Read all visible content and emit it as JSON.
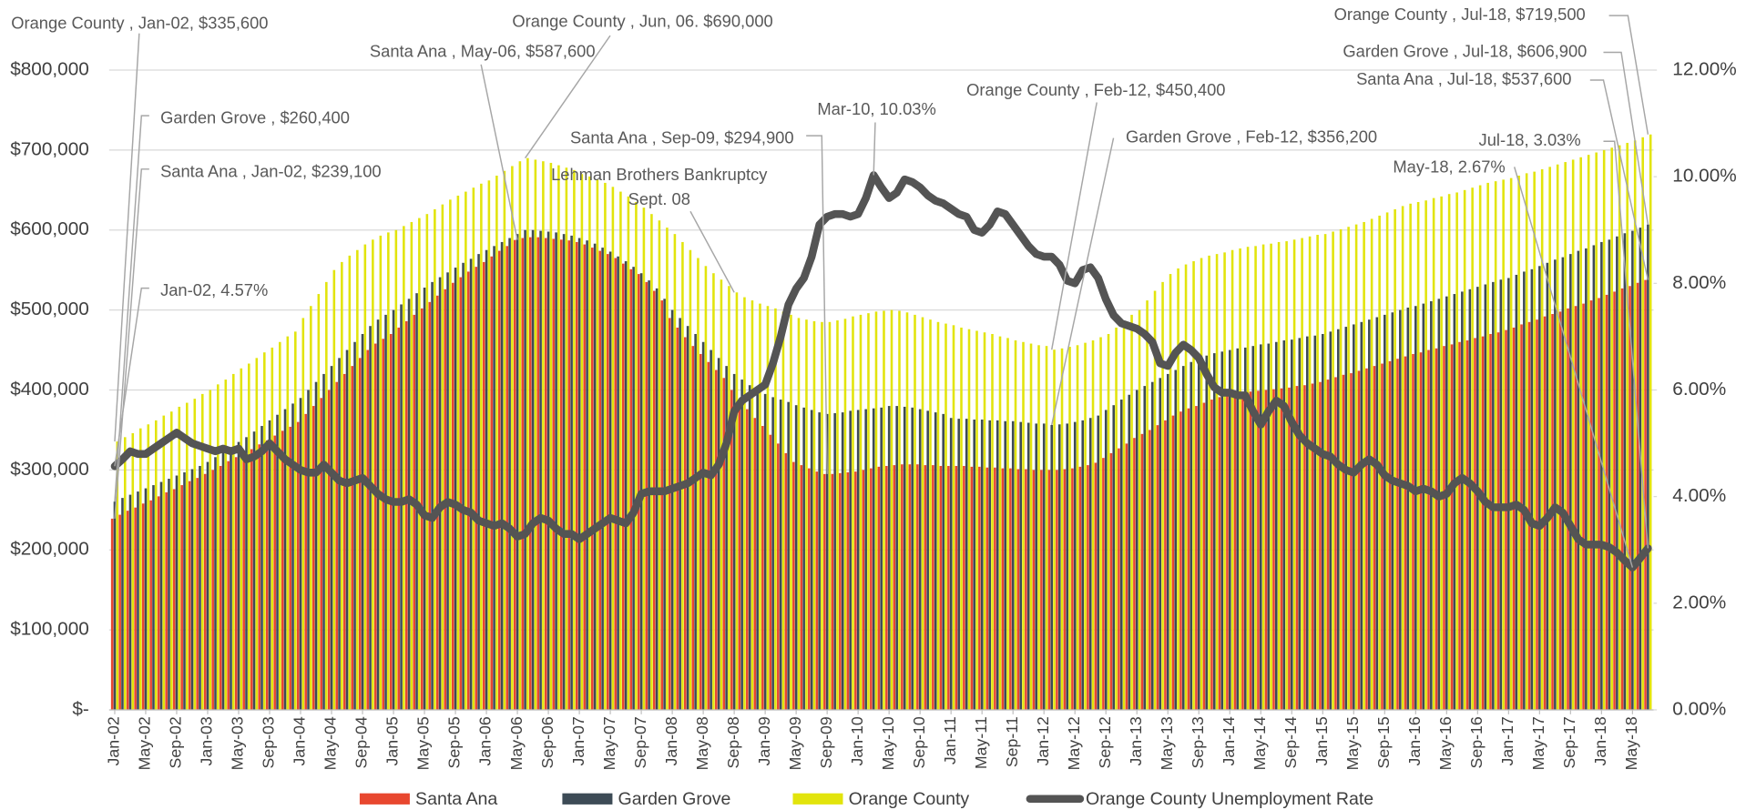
{
  "chart_data": {
    "type": "bar",
    "categories": [
      "Jan-02",
      null,
      null,
      null,
      "May-02",
      null,
      null,
      null,
      "Sep-02",
      null,
      null,
      null,
      "Jan-03",
      null,
      null,
      null,
      "May-03",
      null,
      null,
      null,
      "Sep-03",
      null,
      null,
      null,
      "Jan-04",
      null,
      null,
      null,
      "May-04",
      null,
      null,
      null,
      "Sep-04",
      null,
      null,
      null,
      "Jan-05",
      null,
      null,
      null,
      "May-05",
      null,
      null,
      null,
      "Sep-05",
      null,
      null,
      null,
      "Jan-06",
      null,
      null,
      null,
      "May-06",
      null,
      null,
      null,
      "Sep-06",
      null,
      null,
      null,
      "Jan-07",
      null,
      null,
      null,
      "May-07",
      null,
      null,
      null,
      "Sep-07",
      null,
      null,
      null,
      "Jan-08",
      null,
      null,
      null,
      "May-08",
      null,
      null,
      null,
      "Sep-08",
      null,
      null,
      null,
      "Jan-09",
      null,
      null,
      null,
      "May-09",
      null,
      null,
      null,
      "Sep-09",
      null,
      null,
      null,
      "Jan-10",
      null,
      null,
      null,
      "May-10",
      null,
      null,
      null,
      "Sep-10",
      null,
      null,
      null,
      "Jan-11",
      null,
      null,
      null,
      "May-11",
      null,
      null,
      null,
      "Sep-11",
      null,
      null,
      null,
      "Jan-12",
      null,
      null,
      null,
      "May-12",
      null,
      null,
      null,
      "Sep-12",
      null,
      null,
      null,
      "Jan-13",
      null,
      null,
      null,
      "May-13",
      null,
      null,
      null,
      "Sep-13",
      null,
      null,
      null,
      "Jan-14",
      null,
      null,
      null,
      "May-14",
      null,
      null,
      null,
      "Sep-14",
      null,
      null,
      null,
      "Jan-15",
      null,
      null,
      null,
      "May-15",
      null,
      null,
      null,
      "Sep-15",
      null,
      null,
      null,
      "Jan-16",
      null,
      null,
      null,
      "May-16",
      null,
      null,
      null,
      "Sep-16",
      null,
      null,
      null,
      "Jan-17",
      null,
      null,
      null,
      "May-17",
      null,
      null,
      null,
      "Sep-17",
      null,
      null,
      null,
      "Jan-18",
      null,
      null,
      null,
      "May-18",
      null,
      null
    ],
    "series": [
      {
        "name": "Santa Ana",
        "color": "#e8472f",
        "values": [
          239100,
          244000,
          249000,
          253000,
          258000,
          262000,
          267000,
          272000,
          276000,
          281000,
          286000,
          290000,
          295000,
          300000,
          305000,
          311000,
          316000,
          321000,
          326000,
          332000,
          337000,
          343000,
          349000,
          354000,
          360000,
          370000,
          380000,
          390000,
          400000,
          410000,
          420000,
          430000,
          440000,
          450000,
          458000,
          464000,
          470000,
          478000,
          486000,
          494000,
          502000,
          510000,
          518000,
          526000,
          534000,
          541000,
          548000,
          554000,
          560000,
          567000,
          574000,
          580000,
          587600,
          590000,
          591000,
          591000,
          590000,
          589000,
          588000,
          587000,
          585000,
          582000,
          578000,
          574000,
          570000,
          565000,
          558000,
          551000,
          545000,
          535000,
          524000,
          512000,
          490000,
          478000,
          466000,
          455000,
          445000,
          435000,
          425000,
          415000,
          400000,
          388000,
          376000,
          365000,
          355000,
          344000,
          333000,
          321000,
          310000,
          306000,
          302000,
          298000,
          294900,
          295000,
          296000,
          297000,
          298000,
          300000,
          302000,
          304000,
          305000,
          306000,
          307000,
          307000,
          307000,
          306000,
          306000,
          305000,
          305000,
          305000,
          305000,
          304000,
          304000,
          303000,
          303000,
          302000,
          302000,
          301000,
          301000,
          300000,
          300000,
          300000,
          300000,
          301000,
          302000,
          304000,
          306000,
          309000,
          315000,
          321000,
          327000,
          333000,
          340000,
          345000,
          350000,
          356000,
          362000,
          368000,
          373000,
          377000,
          380000,
          384000,
          388000,
          391000,
          395000,
          396000,
          397000,
          398000,
          399000,
          400000,
          401000,
          402000,
          403000,
          405000,
          406000,
          408000,
          410000,
          413000,
          416000,
          419000,
          421000,
          424000,
          427000,
          430000,
          433000,
          436000,
          439000,
          442000,
          445000,
          447000,
          450000,
          452000,
          455000,
          457000,
          460000,
          462000,
          465000,
          467000,
          470000,
          472000,
          475000,
          478000,
          482000,
          485000,
          488000,
          492000,
          495000,
          498000,
          502000,
          505000,
          508000,
          512000,
          515000,
          519000,
          523000,
          527000,
          530000,
          534000,
          537600
        ]
      },
      {
        "name": "Garden Grove",
        "color": "#3d4b56",
        "values": [
          260400,
          265000,
          269000,
          273000,
          277000,
          281000,
          285000,
          289000,
          293000,
          297000,
          301000,
          305000,
          310000,
          316000,
          322000,
          328000,
          335000,
          341000,
          348000,
          355000,
          362000,
          369000,
          376000,
          383000,
          390000,
          400000,
          410000,
          420000,
          430000,
          440000,
          450000,
          460000,
          470000,
          480000,
          488000,
          494000,
          500000,
          507000,
          514000,
          521000,
          528000,
          535000,
          541000,
          547000,
          553000,
          559000,
          564000,
          570000,
          575000,
          580000,
          585000,
          590000,
          595000,
          600000,
          600000,
          599000,
          598000,
          597000,
          595000,
          593000,
          590000,
          587000,
          583000,
          578000,
          573000,
          567000,
          561000,
          554000,
          546000,
          537000,
          527000,
          514000,
          500000,
          490000,
          480000,
          470000,
          460000,
          450000,
          440000,
          430000,
          420000,
          413000,
          406000,
          400000,
          395000,
          391000,
          388000,
          385000,
          381000,
          378000,
          375000,
          372000,
          370000,
          371000,
          372000,
          374000,
          375000,
          376000,
          377000,
          378000,
          380000,
          380000,
          379000,
          378000,
          376000,
          374000,
          372000,
          370000,
          365000,
          364000,
          364000,
          363000,
          363000,
          362000,
          362000,
          361000,
          361000,
          360000,
          359000,
          358000,
          358000,
          356200,
          357000,
          358000,
          360000,
          362000,
          365000,
          368000,
          375000,
          381000,
          388000,
          394000,
          400000,
          405000,
          410000,
          415000,
          420000,
          425000,
          430000,
          435000,
          440000,
          443000,
          446000,
          448000,
          450000,
          452000,
          453000,
          455000,
          457000,
          458000,
          460000,
          462000,
          463000,
          465000,
          467000,
          468000,
          470000,
          473000,
          476000,
          479000,
          482000,
          485000,
          488000,
          491000,
          494000,
          497000,
          500000,
          503000,
          505000,
          508000,
          511000,
          514000,
          517000,
          520000,
          523000,
          526000,
          529000,
          532000,
          535000,
          538000,
          540000,
          544000,
          548000,
          551000,
          555000,
          559000,
          563000,
          566000,
          570000,
          574000,
          577000,
          581000,
          585000,
          588000,
          592000,
          596000,
          599000,
          603000,
          606900
        ]
      },
      {
        "name": "Orange County",
        "color": "#e2e40c",
        "values": [
          335600,
          341000,
          346000,
          352000,
          357000,
          362000,
          368000,
          373000,
          379000,
          384000,
          389000,
          395000,
          400000,
          407000,
          413000,
          420000,
          427000,
          433000,
          440000,
          447000,
          453000,
          460000,
          467000,
          473000,
          490000,
          505000,
          520000,
          535000,
          550000,
          560000,
          568000,
          575000,
          582000,
          588000,
          593000,
          597000,
          600000,
          605000,
          610000,
          615000,
          620000,
          626000,
          632000,
          638000,
          643000,
          648000,
          653000,
          658000,
          662000,
          668000,
          674000,
          680000,
          686000,
          690000,
          688000,
          686000,
          684000,
          681000,
          678000,
          675000,
          670000,
          667000,
          663000,
          659000,
          654000,
          648000,
          642000,
          635000,
          628000,
          620000,
          612000,
          603000,
          595000,
          585000,
          575000,
          565000,
          555000,
          546000,
          538000,
          530000,
          522000,
          516000,
          512000,
          508000,
          505000,
          502000,
          498000,
          494000,
          490000,
          488000,
          486000,
          485000,
          485000,
          487000,
          489000,
          492000,
          494000,
          496000,
          498000,
          499000,
          500000,
          499000,
          497000,
          494000,
          491000,
          488000,
          485000,
          483000,
          481000,
          478000,
          476000,
          474000,
          472000,
          470000,
          467000,
          465000,
          462000,
          460000,
          458000,
          456000,
          455000,
          450400,
          452000,
          454000,
          456000,
          459000,
          462000,
          466000,
          470000,
          478000,
          486000,
          494000,
          500000,
          512000,
          524000,
          535000,
          545000,
          552000,
          557000,
          561000,
          565000,
          568000,
          570000,
          572000,
          575000,
          577000,
          579000,
          580000,
          582000,
          583000,
          585000,
          586000,
          588000,
          590000,
          592000,
          594000,
          595000,
          598000,
          601000,
          604000,
          607000,
          610000,
          614000,
          618000,
          622000,
          626000,
          630000,
          633000,
          635000,
          637000,
          640000,
          642000,
          645000,
          647000,
          650000,
          653000,
          656000,
          659000,
          661000,
          663000,
          665000,
          668000,
          671000,
          673000,
          676000,
          679000,
          682000,
          685000,
          688000,
          691000,
          694000,
          697000,
          700000,
          703000,
          706000,
          709000,
          712000,
          716000,
          719500
        ]
      },
      {
        "name": "Orange County Unemployment Rate",
        "color": "#545454",
        "type": "line",
        "axis": "y2",
        "values": [
          4.57,
          4.7,
          4.85,
          4.8,
          4.8,
          4.9,
          5.0,
          5.1,
          5.2,
          5.1,
          5.0,
          4.95,
          4.9,
          4.85,
          4.9,
          4.85,
          4.9,
          4.7,
          4.75,
          4.85,
          5.0,
          4.85,
          4.7,
          4.6,
          4.5,
          4.45,
          4.45,
          4.6,
          4.45,
          4.3,
          4.25,
          4.3,
          4.35,
          4.2,
          4.05,
          3.95,
          3.9,
          3.9,
          3.95,
          3.85,
          3.65,
          3.6,
          3.8,
          3.9,
          3.85,
          3.75,
          3.7,
          3.55,
          3.5,
          3.45,
          3.5,
          3.4,
          3.25,
          3.3,
          3.5,
          3.6,
          3.55,
          3.4,
          3.3,
          3.3,
          3.2,
          3.3,
          3.4,
          3.5,
          3.6,
          3.55,
          3.5,
          3.7,
          4.05,
          4.1,
          4.1,
          4.1,
          4.15,
          4.2,
          4.25,
          4.35,
          4.45,
          4.4,
          4.6,
          5.0,
          5.6,
          5.8,
          5.9,
          6.0,
          6.1,
          6.5,
          7.0,
          7.6,
          7.9,
          8.1,
          8.5,
          9.1,
          9.25,
          9.3,
          9.3,
          9.25,
          9.3,
          9.6,
          10.03,
          9.8,
          9.6,
          9.7,
          9.95,
          9.9,
          9.8,
          9.65,
          9.55,
          9.5,
          9.4,
          9.3,
          9.25,
          9.0,
          8.95,
          9.1,
          9.35,
          9.3,
          9.1,
          8.9,
          8.7,
          8.55,
          8.5,
          8.5,
          8.35,
          8.05,
          8.0,
          8.25,
          8.3,
          8.1,
          7.7,
          7.4,
          7.25,
          7.2,
          7.15,
          7.05,
          6.9,
          6.5,
          6.45,
          6.7,
          6.85,
          6.75,
          6.6,
          6.3,
          6.05,
          5.95,
          5.95,
          5.9,
          5.9,
          5.6,
          5.35,
          5.6,
          5.8,
          5.7,
          5.4,
          5.15,
          5.0,
          4.9,
          4.8,
          4.75,
          4.6,
          4.5,
          4.45,
          4.6,
          4.7,
          4.6,
          4.4,
          4.3,
          4.25,
          4.2,
          4.1,
          4.15,
          4.1,
          4.0,
          4.05,
          4.25,
          4.35,
          4.25,
          4.1,
          3.9,
          3.8,
          3.8,
          3.8,
          3.85,
          3.75,
          3.5,
          3.45,
          3.6,
          3.8,
          3.7,
          3.45,
          3.2,
          3.1,
          3.1,
          3.1,
          3.05,
          2.95,
          2.8,
          2.67,
          2.85,
          3.03
        ]
      }
    ],
    "ylim": [
      0,
      800000
    ],
    "yticks": [
      {
        "value": 0,
        "label": "$-"
      },
      {
        "value": 100000,
        "label": "$100,000"
      },
      {
        "value": 200000,
        "label": "$200,000"
      },
      {
        "value": 300000,
        "label": "$300,000"
      },
      {
        "value": 400000,
        "label": "$400,000"
      },
      {
        "value": 500000,
        "label": "$500,000"
      },
      {
        "value": 600000,
        "label": "$600,000"
      },
      {
        "value": 700000,
        "label": "$700,000"
      },
      {
        "value": 800000,
        "label": "$800,000"
      }
    ],
    "y2lim": [
      0,
      12
    ],
    "y2ticks": [
      {
        "value": 0,
        "label": "0.00%"
      },
      {
        "value": 2,
        "label": "2.00%"
      },
      {
        "value": 4,
        "label": "4.00%"
      },
      {
        "value": 6,
        "label": "6.00%"
      },
      {
        "value": 8,
        "label": "8.00%"
      },
      {
        "value": 10,
        "label": "10.00%"
      },
      {
        "value": 12,
        "label": "12.00%"
      }
    ],
    "grid": true,
    "legend": "bottom",
    "annotations": [
      "Orange County , Jan-02,  $335,600",
      "Garden Grove ,  $260,400",
      "Santa Ana , Jan-02,  $239,100",
      "Jan-02, 4.57%",
      "Santa Ana , May-06,  $587,600",
      "Orange County , Jun, 06.  $690,000",
      "Lehman Brothers Bankruptcy",
      "Sept. 08",
      "Santa Ana , Sep-09,  $294,900",
      "Mar-10, 10.03%",
      "Orange County , Feb-12,  $450,400",
      "Garden Grove , Feb-12,  $356,200",
      "Orange County , Jul-18,  $719,500",
      "Garden Grove , Jul-18,  $606,900",
      "Santa Ana , Jul-18,  $537,600",
      "Jul-18, 3.03%",
      "May-18, 2.67%"
    ]
  }
}
